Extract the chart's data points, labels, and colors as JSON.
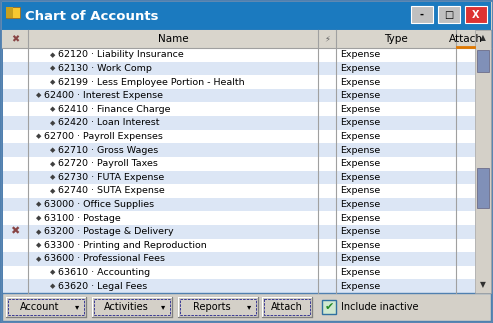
{
  "title": "Chart of Accounts",
  "title_bar_color": "#1b7abf",
  "title_text_color": "#ffffff",
  "window_bg": "#d4d0c8",
  "table_bg": "#ffffff",
  "header_bg": "#d9d5cc",
  "alt_row_color": "#dce6f5",
  "normal_row_color": "#ffffff",
  "grid_color": "#a0a0a0",
  "border_color": "#5080b0",
  "rows": [
    {
      "indent": 2,
      "name": "62120 · Liability Insurance",
      "type": "Expense",
      "mark": false
    },
    {
      "indent": 2,
      "name": "62130 · Work Comp",
      "type": "Expense",
      "mark": false
    },
    {
      "indent": 2,
      "name": "62199 · Less Employee Portion - Health",
      "type": "Expense",
      "mark": false
    },
    {
      "indent": 1,
      "name": "62400 · Interest Expense",
      "type": "Expense",
      "mark": false
    },
    {
      "indent": 2,
      "name": "62410 · Finance Charge",
      "type": "Expense",
      "mark": false
    },
    {
      "indent": 2,
      "name": "62420 · Loan Interest",
      "type": "Expense",
      "mark": false
    },
    {
      "indent": 1,
      "name": "62700 · Payroll Expenses",
      "type": "Expense",
      "mark": false
    },
    {
      "indent": 2,
      "name": "62710 · Gross Wages",
      "type": "Expense",
      "mark": false
    },
    {
      "indent": 2,
      "name": "62720 · Payroll Taxes",
      "type": "Expense",
      "mark": false
    },
    {
      "indent": 2,
      "name": "62730 · FUTA Expense",
      "type": "Expense",
      "mark": false
    },
    {
      "indent": 2,
      "name": "62740 · SUTA Expense",
      "type": "Expense",
      "mark": false
    },
    {
      "indent": 1,
      "name": "63000 · Office Supplies",
      "type": "Expense",
      "mark": false
    },
    {
      "indent": 1,
      "name": "63100 · Postage",
      "type": "Expense",
      "mark": false
    },
    {
      "indent": 1,
      "name": "63200 · Postage & Delivery",
      "type": "Expense",
      "mark": true
    },
    {
      "indent": 1,
      "name": "63300 · Printing and Reproduction",
      "type": "Expense",
      "mark": false
    },
    {
      "indent": 1,
      "name": "63600 · Professional Fees",
      "type": "Expense",
      "mark": false
    },
    {
      "indent": 2,
      "name": "63610 · Accounting",
      "type": "Expense",
      "mark": false
    },
    {
      "indent": 2,
      "name": "63620 · Legal Fees",
      "type": "Expense",
      "mark": false
    }
  ],
  "footer_buttons": [
    "Account",
    "Activities",
    "Reports",
    "Attach"
  ],
  "footer_checkbox_label": "Include inactive"
}
